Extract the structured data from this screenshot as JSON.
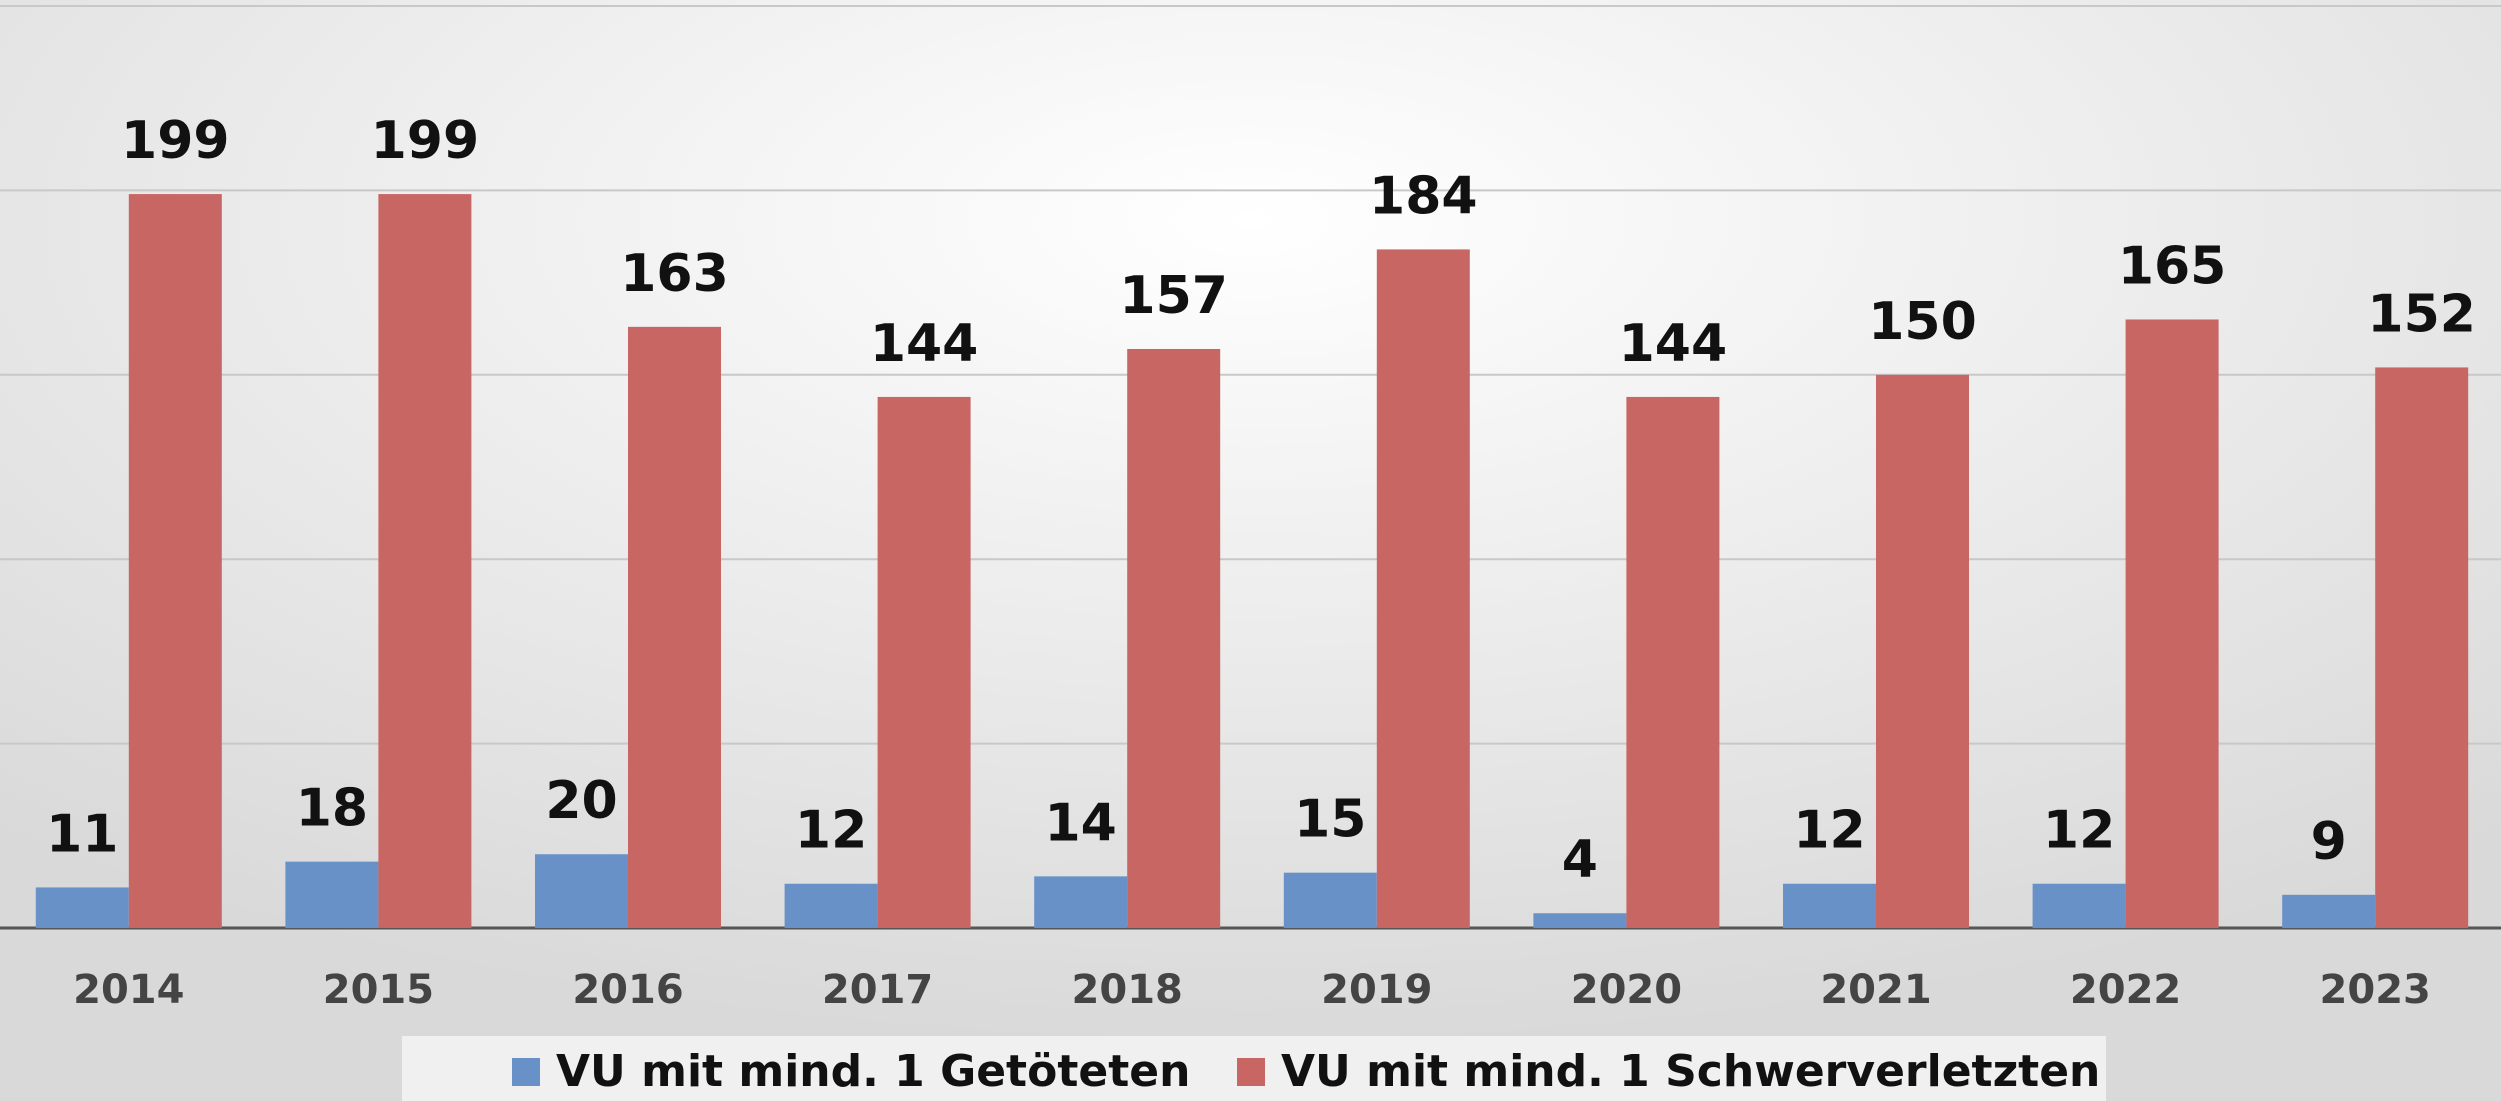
{
  "chart_data": {
    "type": "bar",
    "categories": [
      "2014",
      "2015",
      "2016",
      "2017",
      "2018",
      "2019",
      "2020",
      "2021",
      "2022",
      "2023"
    ],
    "series": [
      {
        "name": "VU mit mind. 1 Getöteten",
        "color": "#6891c8",
        "values": [
          11,
          18,
          20,
          12,
          14,
          15,
          4,
          12,
          12,
          9
        ]
      },
      {
        "name": "VU mit mind. 1 Schwerverletzten",
        "color": "#c86664",
        "values": [
          199,
          199,
          163,
          144,
          157,
          184,
          144,
          150,
          165,
          152
        ]
      }
    ],
    "ylim": [
      0,
      250
    ],
    "yticks": [
      0,
      50,
      100,
      150,
      200,
      250
    ],
    "grid": true,
    "legend": "bottom"
  }
}
